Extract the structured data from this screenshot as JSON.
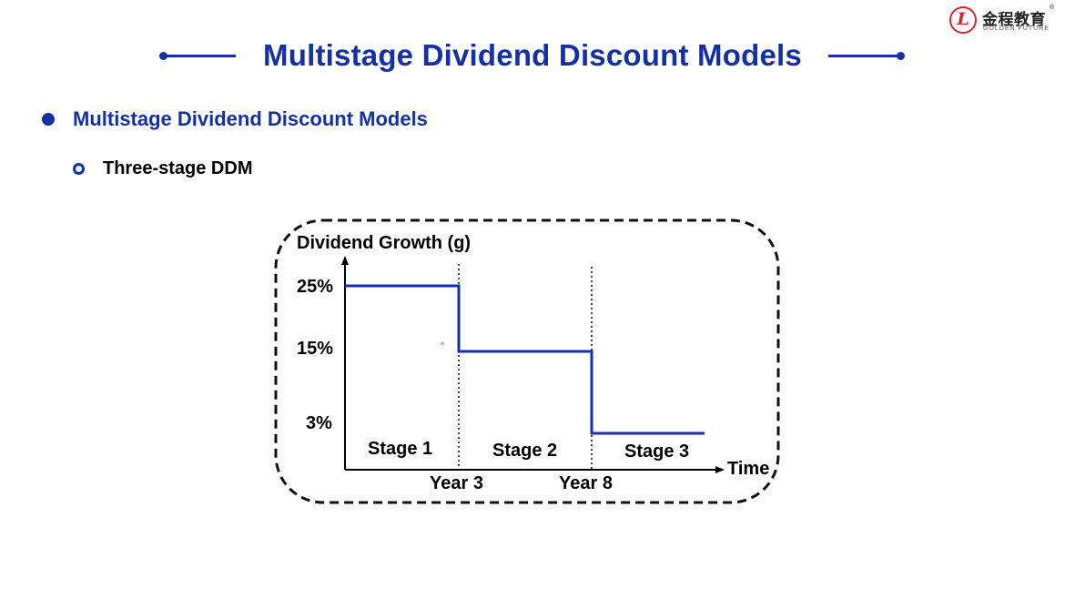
{
  "header": {
    "title": "Multistage Dividend Discount Models",
    "logo": {
      "emblem": "L",
      "chinese_name": "金程教育",
      "english_name": "GOLDEN FUTURE",
      "registered_mark": "®"
    }
  },
  "content": {
    "bullet_level1": "Multistage Dividend Discount Models",
    "bullet_level2": "Three-stage DDM"
  },
  "diagram": {
    "y_axis_label": "Dividend Growth (g)",
    "x_axis_label": "Time",
    "y_ticks": [
      "25%",
      "15%",
      "3%"
    ],
    "x_ticks": [
      "Year 3",
      "Year 8"
    ],
    "stages": [
      {
        "label": "Stage 1",
        "growth": "25%",
        "end": "Year 3"
      },
      {
        "label": "Stage 2",
        "growth": "15%",
        "end": "Year 8"
      },
      {
        "label": "Stage 3",
        "growth": "3%"
      }
    ],
    "colors": {
      "step_line": "#1330a8",
      "border": "#111111",
      "title": "#1330a8"
    }
  }
}
